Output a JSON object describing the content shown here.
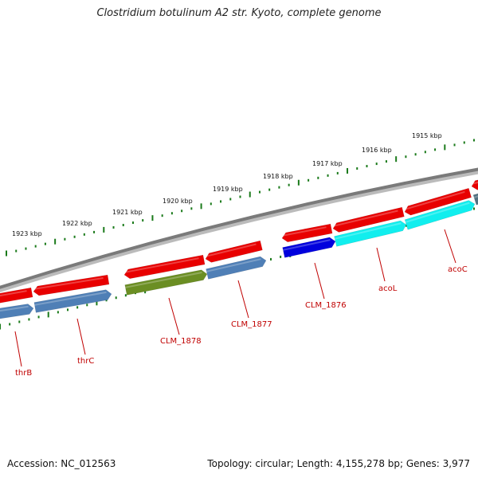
{
  "title": "Clostridium botulinum A2 str. Kyoto, complete genome",
  "footer": {
    "accession": "Accession: NC_012563",
    "topology": "Topology: circular; Length: 4,155,278 bp; Genes: 3,977"
  },
  "colors": {
    "backbone": "#808080",
    "tick": "#1a7a1a",
    "forward": "#e80000",
    "steelblue": "#4f7fb6",
    "olive": "#6b8e23",
    "blue": "#0000dd",
    "cyan": "#11eeee",
    "label": "#c00000"
  },
  "kbp_labels": [
    "1915 kbp",
    "1916 kbp",
    "1917 kbp",
    "1918 kbp",
    "1919 kbp",
    "1920 kbp",
    "1921 kbp",
    "1922 kbp",
    "1923 kbp"
  ],
  "gene_labels": [
    "acoC",
    "acoL",
    "CLM_1876",
    "CLM_1877",
    "CLM_1878",
    "thrC",
    "thrB"
  ]
}
